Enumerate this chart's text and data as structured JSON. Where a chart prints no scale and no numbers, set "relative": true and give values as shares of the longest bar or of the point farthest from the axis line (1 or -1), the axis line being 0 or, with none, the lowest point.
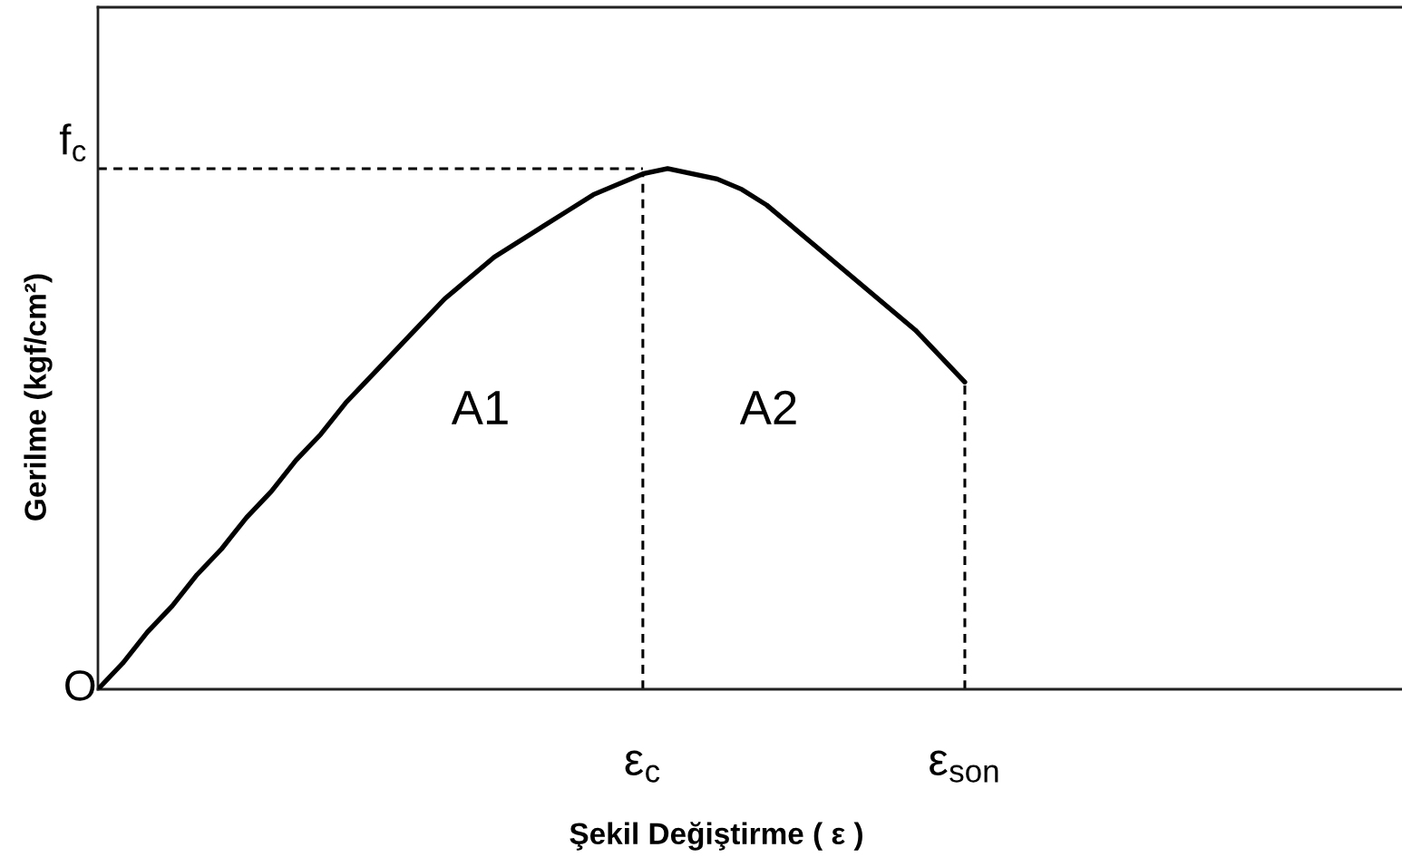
{
  "chart_data": {
    "type": "line",
    "relative": true,
    "xlabel": "Şekil Değiştirme ( ε )",
    "ylabel": "Gerilme (kgf/cm²)",
    "categories": [
      null,
      null,
      null,
      null,
      null,
      null,
      null,
      null,
      null,
      null,
      null,
      null,
      null,
      null,
      null,
      null,
      null,
      null,
      null,
      null,
      null,
      null,
      "ε$_{c}$",
      null,
      null,
      null,
      null,
      null,
      null,
      null,
      null,
      null,
      null,
      null,
      null,
      "ε$_{son}$",
      null,
      null,
      null,
      null,
      null,
      null,
      null,
      null,
      null,
      null,
      null,
      null,
      null,
      null,
      null,
      null,
      null
    ],
    "values": [
      0,
      0.05,
      0.11,
      0.16,
      0.22,
      0.27,
      0.33,
      0.38,
      0.44,
      0.49,
      0.55,
      0.6,
      0.65,
      0.7,
      0.75,
      0.79,
      0.83,
      0.86,
      0.89,
      0.92,
      0.95,
      0.97,
      0.99,
      1,
      0.99,
      0.98,
      0.96,
      0.93,
      0.89,
      0.85,
      0.81,
      0.77,
      0.73,
      0.69,
      0.64,
      0.59,
      null,
      null,
      null,
      null,
      null,
      null,
      null,
      null,
      null,
      null,
      null,
      null,
      null,
      null,
      null,
      null,
      null
    ],
    "color": "#000000",
    "ref_lines": [
      {
        "axis": "y",
        "value": 1,
        "label": "f$_{c}$",
        "line_style": "dashed",
        "color": "#000000"
      },
      {
        "axis": "x",
        "value": "ε$_{c}$",
        "line_style": "dashed",
        "color": "#000000"
      },
      {
        "axis": "x",
        "value": "ε$_{son}$",
        "line_style": "dashed",
        "color": "#000000"
      }
    ],
    "annotations": [
      "O",
      "A1",
      "A2"
    ]
  }
}
